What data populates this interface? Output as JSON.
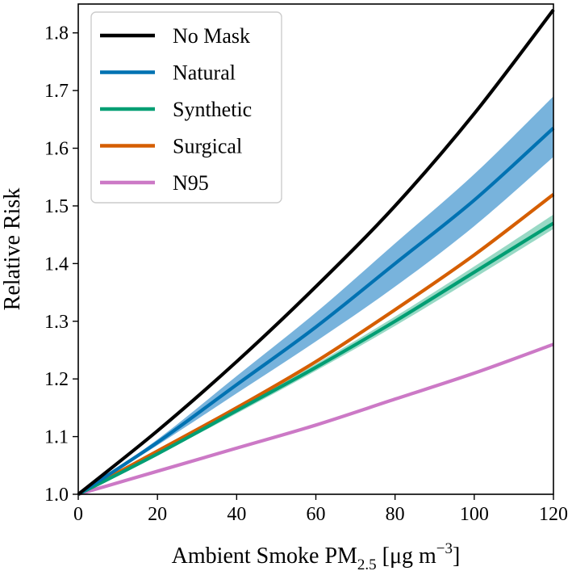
{
  "chart_data": {
    "type": "line",
    "title": "",
    "xlabel": {
      "main": "Ambient Smoke PM",
      "sub": "2.5",
      "units_pre": " [μg m",
      "units_sup": "−3",
      "units_post": "]"
    },
    "ylabel": "Relative Risk",
    "xlim": [
      0,
      120
    ],
    "ylim": [
      1.0,
      1.85
    ],
    "xticks": [
      0,
      20,
      40,
      60,
      80,
      100,
      120
    ],
    "xtick_labels": [
      "0",
      "20",
      "40",
      "60",
      "80",
      "100",
      "120"
    ],
    "yticks": [
      1.0,
      1.1,
      1.2,
      1.3,
      1.4,
      1.5,
      1.6,
      1.7,
      1.8
    ],
    "ytick_labels": [
      "1.0",
      "1.1",
      "1.2",
      "1.3",
      "1.4",
      "1.5",
      "1.6",
      "1.7",
      "1.8"
    ],
    "grid": false,
    "legend_position": "upper-left",
    "x": [
      0,
      20,
      40,
      60,
      80,
      100,
      120
    ],
    "series": [
      {
        "name": "No Mask",
        "color": "#000000",
        "values": [
          1.0,
          1.11,
          1.23,
          1.36,
          1.5,
          1.66,
          1.84
        ]
      },
      {
        "name": "Natural",
        "color": "#0072b2",
        "values": [
          1.0,
          1.09,
          1.19,
          1.29,
          1.4,
          1.51,
          1.635
        ],
        "band_lower": [
          1.0,
          1.085,
          1.175,
          1.265,
          1.36,
          1.465,
          1.585
        ],
        "band_upper": [
          1.0,
          1.095,
          1.205,
          1.315,
          1.435,
          1.555,
          1.69
        ],
        "band_color": "#56a0d3"
      },
      {
        "name": "Synthetic",
        "color": "#009e73",
        "values": [
          1.0,
          1.07,
          1.145,
          1.22,
          1.3,
          1.385,
          1.47
        ],
        "band_lower": [
          1.0,
          1.068,
          1.14,
          1.214,
          1.292,
          1.375,
          1.46
        ],
        "band_upper": [
          1.0,
          1.072,
          1.15,
          1.226,
          1.308,
          1.395,
          1.485
        ],
        "band_color": "#7fd0b6"
      },
      {
        "name": "Surgical",
        "color": "#d55e00",
        "values": [
          1.0,
          1.075,
          1.15,
          1.23,
          1.32,
          1.415,
          1.52
        ]
      },
      {
        "name": "N95",
        "color": "#cc79c6",
        "values": [
          1.0,
          1.04,
          1.08,
          1.12,
          1.165,
          1.21,
          1.26
        ]
      }
    ]
  }
}
